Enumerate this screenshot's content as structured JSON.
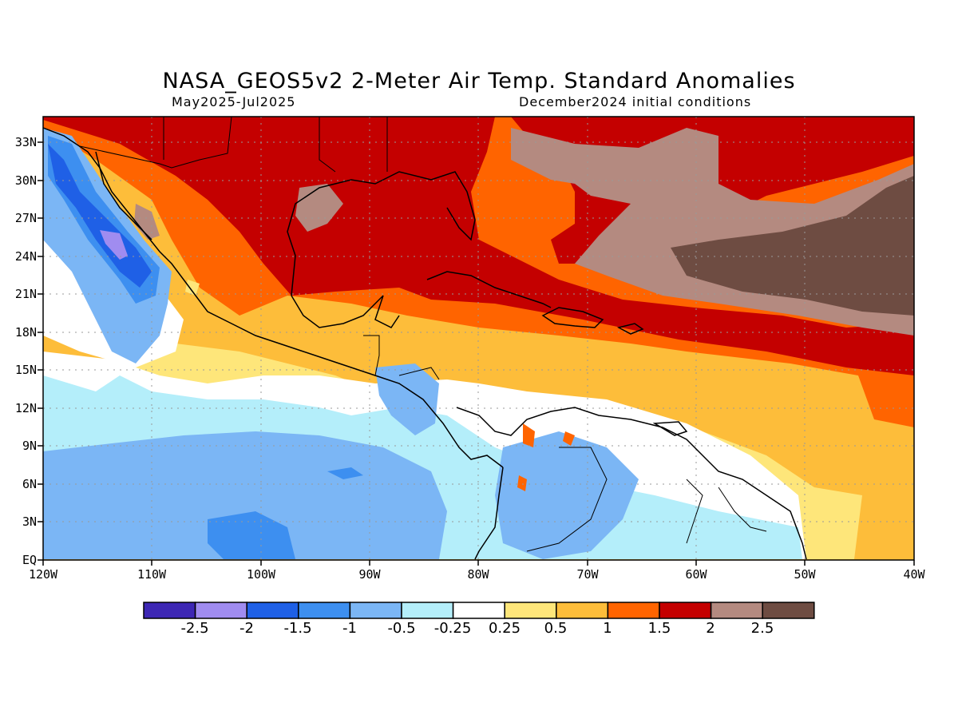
{
  "header": {
    "title": "NASA_GEOS5v2 2-Meter Air Temp. Standard Anomalies",
    "period": "May2025-Jul2025",
    "init": "December2024 initial conditions"
  },
  "axes": {
    "lat_labels": [
      "33N",
      "30N",
      "27N",
      "24N",
      "21N",
      "18N",
      "15N",
      "12N",
      "9N",
      "6N",
      "3N",
      "EQ"
    ],
    "lon_labels": [
      "120W",
      "110W",
      "100W",
      "90W",
      "80W",
      "70W",
      "60W",
      "50W",
      "40W"
    ]
  },
  "colorbar": {
    "colors": [
      "#3d27b4",
      "#a08cf0",
      "#1f60e6",
      "#3d8ff0",
      "#7bb6f5",
      "#b4eefa",
      "#ffffff",
      "#fee67a",
      "#fdbd3a",
      "#ff6400",
      "#c40000",
      "#b48a80",
      "#6e4c42"
    ],
    "labels": [
      "-2.5",
      "-2",
      "-1.5",
      "-1",
      "-0.5",
      "-0.25",
      "0.25",
      "0.5",
      "1",
      "1.5",
      "2",
      "2.5"
    ]
  },
  "chart_data": {
    "type": "heatmap",
    "variable": "2-Meter Air Temp. Standard Anomalies",
    "period": "May2025-Jul2025",
    "initial_conditions": "December2024",
    "lon_range": [
      -120,
      -40
    ],
    "lat_range": [
      0,
      35
    ],
    "levels": [
      -2.5,
      -2,
      -1.5,
      -1,
      -0.5,
      -0.25,
      0.25,
      0.5,
      1,
      1.5,
      2,
      2.5
    ],
    "grid": true
  }
}
